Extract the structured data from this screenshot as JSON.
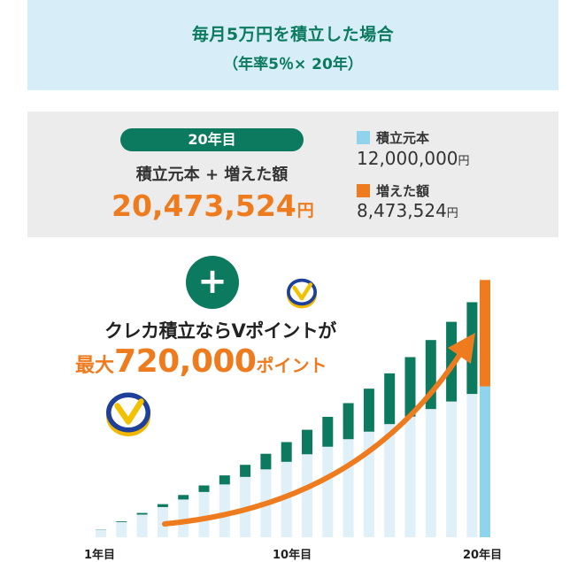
{
  "header": {
    "title": "毎月5万円を積立した場合",
    "subtitle": "（年率5％× 20年）"
  },
  "summary": {
    "badge": "20年目",
    "label": "積立元本 + 増えた額",
    "total_value": "20,473,524",
    "total_unit": "円",
    "legend": [
      {
        "name": "積立元本",
        "value": "12,000,000",
        "unit": "円",
        "color": "#8fd3ec"
      },
      {
        "name": "増えた額",
        "value": "8,473,524",
        "unit": "円",
        "color": "#ee7b1e"
      }
    ]
  },
  "promo": {
    "plus_symbol": "+",
    "line1": "クレカ積立ならVポイントが",
    "line2_prefix": "最大",
    "line2_amount": "720,000",
    "line2_suffix": "ポイント"
  },
  "colors": {
    "principal_bar": "#dff0f9",
    "gain_bar": "#0b7a5f",
    "final_principal": "#8fd3ec",
    "final_gain": "#ee7b1e",
    "arrow": "#ee7b1e"
  },
  "chart_data": {
    "type": "bar",
    "stacked": true,
    "categories": [
      "1",
      "2",
      "3",
      "4",
      "5",
      "6",
      "7",
      "8",
      "9",
      "10",
      "11",
      "12",
      "13",
      "14",
      "15",
      "16",
      "17",
      "18",
      "19",
      "20"
    ],
    "series": [
      {
        "name": "積立元本",
        "values": [
          0.6,
          1.2,
          1.8,
          2.4,
          3.0,
          3.6,
          4.2,
          4.8,
          5.4,
          6.0,
          6.6,
          7.2,
          7.8,
          8.4,
          9.0,
          9.6,
          10.2,
          10.8,
          11.4,
          12.0
        ]
      },
      {
        "name": "増えた額",
        "values": [
          0.02,
          0.06,
          0.13,
          0.23,
          0.36,
          0.52,
          0.72,
          0.96,
          1.24,
          1.57,
          1.95,
          2.38,
          2.87,
          3.42,
          4.04,
          4.73,
          5.49,
          6.34,
          7.3,
          8.47
        ]
      }
    ],
    "x_tick_labels": {
      "1": "1年目",
      "10": "10年目",
      "20": "20年目"
    },
    "unit_note": "values in millions of yen (estimated)",
    "highlight_last": true,
    "ylim": [
      0,
      21
    ]
  }
}
